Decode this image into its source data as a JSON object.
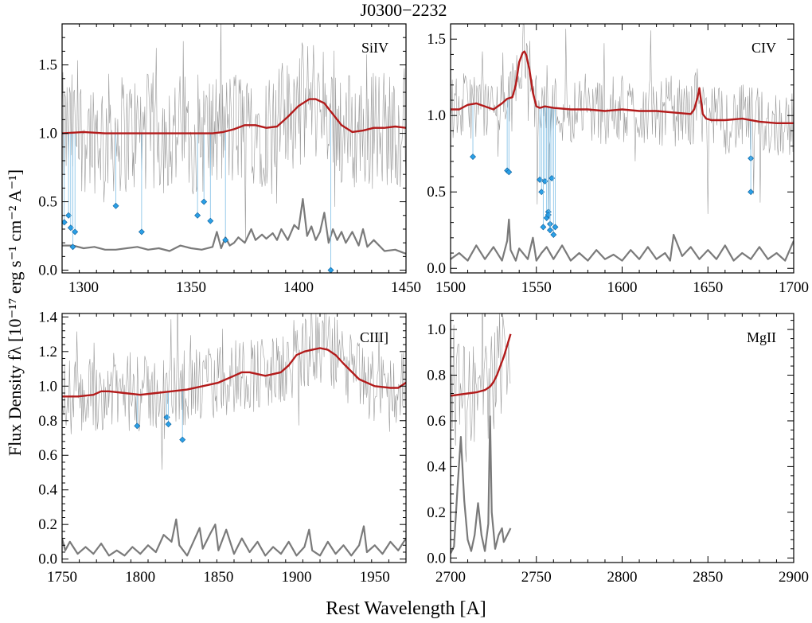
{
  "figure": {
    "title": "J0300−2232",
    "xlabel": "Rest Wavelength [A]",
    "ylabel": "Flux Density fλ [10⁻¹⁷ erg s⁻¹ cm⁻² A⁻¹]"
  },
  "colors": {
    "spectrum": "#9a9a9a",
    "error": "#7a7a7a",
    "model": "#b31b1b",
    "masked_points": "#2a9fe6"
  },
  "chart_data": [
    {
      "type": "line",
      "label": "SiIV",
      "xlim": [
        1290,
        1450
      ],
      "ylim": [
        -0.02,
        1.8
      ],
      "xticks": [
        1300,
        1350,
        1400,
        1450
      ],
      "yticks": [
        0.0,
        0.5,
        1.0,
        1.5
      ],
      "series": [
        {
          "role": "model",
          "x": [
            1290,
            1300,
            1310,
            1320,
            1330,
            1340,
            1350,
            1360,
            1365,
            1370,
            1375,
            1380,
            1385,
            1390,
            1395,
            1400,
            1405,
            1408,
            1412,
            1416,
            1420,
            1425,
            1430,
            1435,
            1440,
            1445,
            1450
          ],
          "y": [
            1.0,
            1.01,
            1.0,
            1.0,
            1.0,
            1.0,
            1.0,
            1.0,
            1.01,
            1.03,
            1.06,
            1.06,
            1.04,
            1.05,
            1.12,
            1.2,
            1.25,
            1.25,
            1.22,
            1.14,
            1.06,
            1.01,
            1.02,
            1.04,
            1.04,
            1.05,
            1.04
          ]
        },
        {
          "role": "error",
          "x": [
            1290,
            1295,
            1300,
            1305,
            1310,
            1315,
            1320,
            1325,
            1330,
            1335,
            1340,
            1345,
            1350,
            1355,
            1360,
            1362,
            1364,
            1366,
            1368,
            1370,
            1372,
            1375,
            1378,
            1380,
            1383,
            1385,
            1388,
            1390,
            1392,
            1395,
            1398,
            1400,
            1402,
            1404,
            1406,
            1408,
            1410,
            1412,
            1414,
            1416,
            1418,
            1420,
            1422,
            1425,
            1428,
            1430,
            1432,
            1435,
            1440,
            1445,
            1450
          ],
          "y": [
            0.18,
            0.18,
            0.16,
            0.17,
            0.15,
            0.15,
            0.16,
            0.17,
            0.15,
            0.16,
            0.14,
            0.18,
            0.16,
            0.15,
            0.17,
            0.28,
            0.16,
            0.24,
            0.18,
            0.2,
            0.24,
            0.2,
            0.3,
            0.22,
            0.26,
            0.23,
            0.27,
            0.22,
            0.3,
            0.22,
            0.33,
            0.3,
            0.52,
            0.25,
            0.32,
            0.22,
            0.28,
            0.42,
            0.2,
            0.3,
            0.22,
            0.28,
            0.2,
            0.28,
            0.18,
            0.3,
            0.17,
            0.22,
            0.14,
            0.15,
            0.12
          ]
        }
      ],
      "masked": [
        {
          "x": 1291,
          "y": 0.35
        },
        {
          "x": 1293,
          "y": 0.4
        },
        {
          "x": 1294,
          "y": 0.31
        },
        {
          "x": 1295,
          "y": 0.17
        },
        {
          "x": 1296,
          "y": 0.28
        },
        {
          "x": 1315,
          "y": 0.47
        },
        {
          "x": 1327,
          "y": 0.28
        },
        {
          "x": 1353,
          "y": 0.4
        },
        {
          "x": 1356,
          "y": 0.5
        },
        {
          "x": 1359,
          "y": 0.36
        },
        {
          "x": 1366,
          "y": 0.22
        },
        {
          "x": 1415,
          "y": 0.0
        }
      ]
    },
    {
      "type": "line",
      "label": "CIV",
      "xlim": [
        1500,
        1700
      ],
      "ylim": [
        -0.03,
        1.6
      ],
      "xticks": [
        1500,
        1550,
        1600,
        1650,
        1700
      ],
      "yticks": [
        0.0,
        0.5,
        1.0,
        1.5
      ],
      "series": [
        {
          "role": "model",
          "x": [
            1500,
            1505,
            1510,
            1515,
            1520,
            1525,
            1530,
            1533,
            1536,
            1538,
            1540,
            1542,
            1543,
            1544,
            1546,
            1548,
            1550,
            1552,
            1555,
            1560,
            1570,
            1580,
            1590,
            1600,
            1610,
            1620,
            1630,
            1640,
            1642,
            1644,
            1645,
            1646,
            1647,
            1649,
            1652,
            1660,
            1670,
            1680,
            1690,
            1700
          ],
          "y": [
            1.04,
            1.04,
            1.07,
            1.08,
            1.06,
            1.04,
            1.08,
            1.11,
            1.12,
            1.2,
            1.35,
            1.41,
            1.42,
            1.4,
            1.3,
            1.15,
            1.06,
            1.05,
            1.06,
            1.05,
            1.04,
            1.04,
            1.03,
            1.04,
            1.03,
            1.03,
            1.02,
            1.01,
            1.04,
            1.12,
            1.18,
            1.1,
            1.01,
            0.98,
            0.97,
            0.97,
            0.98,
            0.96,
            0.95,
            0.95
          ]
        },
        {
          "role": "error",
          "x": [
            1500,
            1505,
            1510,
            1515,
            1520,
            1525,
            1530,
            1533,
            1534,
            1535,
            1538,
            1540,
            1545,
            1548,
            1550,
            1553,
            1556,
            1560,
            1565,
            1570,
            1575,
            1580,
            1585,
            1590,
            1595,
            1600,
            1605,
            1610,
            1615,
            1620,
            1625,
            1628,
            1630,
            1635,
            1640,
            1645,
            1650,
            1655,
            1660,
            1665,
            1670,
            1675,
            1680,
            1685,
            1690,
            1695,
            1700
          ],
          "y": [
            0.06,
            0.1,
            0.05,
            0.15,
            0.06,
            0.14,
            0.05,
            0.18,
            0.32,
            0.12,
            0.05,
            0.13,
            0.06,
            0.2,
            0.05,
            0.1,
            0.14,
            0.06,
            0.15,
            0.05,
            0.1,
            0.05,
            0.12,
            0.06,
            0.09,
            0.05,
            0.12,
            0.06,
            0.14,
            0.06,
            0.1,
            0.05,
            0.22,
            0.08,
            0.14,
            0.06,
            0.12,
            0.06,
            0.15,
            0.05,
            0.1,
            0.06,
            0.14,
            0.06,
            0.1,
            0.05,
            0.18
          ]
        }
      ],
      "masked": [
        {
          "x": 1513,
          "y": 0.73
        },
        {
          "x": 1533,
          "y": 0.64
        },
        {
          "x": 1534,
          "y": 0.63
        },
        {
          "x": 1552,
          "y": 0.58
        },
        {
          "x": 1553,
          "y": 0.5
        },
        {
          "x": 1554,
          "y": 0.27
        },
        {
          "x": 1555,
          "y": 0.57
        },
        {
          "x": 1556,
          "y": 0.33
        },
        {
          "x": 1557,
          "y": 0.37
        },
        {
          "x": 1557,
          "y": 0.35
        },
        {
          "x": 1558,
          "y": 0.29
        },
        {
          "x": 1558,
          "y": 0.25
        },
        {
          "x": 1559,
          "y": 0.59
        },
        {
          "x": 1560,
          "y": 0.22
        },
        {
          "x": 1561,
          "y": 0.27
        },
        {
          "x": 1675,
          "y": 0.72
        },
        {
          "x": 1675,
          "y": 0.5
        }
      ]
    },
    {
      "type": "line",
      "label": "CIII]",
      "xlim": [
        1750,
        1970
      ],
      "ylim": [
        -0.02,
        1.42
      ],
      "xticks": [
        1750,
        1800,
        1850,
        1900,
        1950
      ],
      "yticks": [
        0.0,
        0.2,
        0.4,
        0.6,
        0.8,
        1.0,
        1.2,
        1.4
      ],
      "series": [
        {
          "role": "model",
          "x": [
            1750,
            1760,
            1770,
            1775,
            1780,
            1790,
            1800,
            1810,
            1820,
            1830,
            1840,
            1850,
            1860,
            1865,
            1870,
            1880,
            1890,
            1895,
            1900,
            1905,
            1910,
            1915,
            1920,
            1925,
            1930,
            1940,
            1950,
            1960,
            1965,
            1970
          ],
          "y": [
            0.94,
            0.94,
            0.95,
            0.97,
            0.97,
            0.96,
            0.95,
            0.96,
            0.97,
            0.98,
            1.0,
            1.02,
            1.06,
            1.08,
            1.08,
            1.06,
            1.08,
            1.12,
            1.18,
            1.2,
            1.21,
            1.22,
            1.21,
            1.18,
            1.13,
            1.04,
            1.0,
            0.99,
            0.99,
            1.02
          ]
        },
        {
          "role": "error",
          "x": [
            1750,
            1752,
            1755,
            1760,
            1765,
            1770,
            1775,
            1780,
            1785,
            1790,
            1795,
            1800,
            1805,
            1810,
            1815,
            1820,
            1823,
            1825,
            1830,
            1835,
            1838,
            1840,
            1845,
            1848,
            1850,
            1855,
            1860,
            1865,
            1870,
            1875,
            1880,
            1885,
            1890,
            1895,
            1900,
            1905,
            1908,
            1910,
            1915,
            1920,
            1925,
            1930,
            1935,
            1940,
            1943,
            1945,
            1950,
            1955,
            1960,
            1965,
            1970
          ],
          "y": [
            0.12,
            0.05,
            0.1,
            0.03,
            0.07,
            0.03,
            0.09,
            0.02,
            0.05,
            0.02,
            0.07,
            0.03,
            0.08,
            0.04,
            0.14,
            0.1,
            0.23,
            0.08,
            0.02,
            0.12,
            0.18,
            0.06,
            0.15,
            0.2,
            0.05,
            0.17,
            0.03,
            0.12,
            0.04,
            0.1,
            0.02,
            0.07,
            0.03,
            0.1,
            0.02,
            0.07,
            0.17,
            0.05,
            0.02,
            0.1,
            0.03,
            0.08,
            0.02,
            0.08,
            0.19,
            0.04,
            0.08,
            0.03,
            0.1,
            0.05,
            0.12
          ]
        }
      ],
      "masked": [
        {
          "x": 1798,
          "y": 0.77
        },
        {
          "x": 1817,
          "y": 0.82
        },
        {
          "x": 1818,
          "y": 0.78
        },
        {
          "x": 1827,
          "y": 0.69
        }
      ]
    },
    {
      "type": "line",
      "label": "MgII",
      "xlim": [
        2700,
        2900
      ],
      "ylim": [
        -0.02,
        1.07
      ],
      "xticks": [
        2700,
        2750,
        2800,
        2850,
        2900
      ],
      "yticks": [
        0.0,
        0.2,
        0.4,
        0.6,
        0.8,
        1.0
      ],
      "series": [
        {
          "role": "model",
          "x": [
            2700,
            2705,
            2710,
            2715,
            2720,
            2723,
            2725,
            2727,
            2729,
            2731,
            2733,
            2735
          ],
          "y": [
            0.71,
            0.715,
            0.72,
            0.725,
            0.735,
            0.75,
            0.77,
            0.8,
            0.84,
            0.88,
            0.93,
            0.98
          ]
        },
        {
          "role": "error",
          "x": [
            2700,
            2702,
            2704,
            2706,
            2708,
            2710,
            2712,
            2714,
            2716,
            2718,
            2720,
            2722,
            2723,
            2724,
            2726,
            2728,
            2730,
            2731,
            2733,
            2735
          ],
          "y": [
            0.02,
            0.05,
            0.3,
            0.53,
            0.25,
            0.08,
            0.03,
            0.1,
            0.24,
            0.1,
            0.03,
            0.15,
            0.62,
            0.2,
            0.04,
            0.1,
            0.13,
            0.07,
            0.1,
            0.13
          ]
        }
      ],
      "masked": []
    }
  ]
}
